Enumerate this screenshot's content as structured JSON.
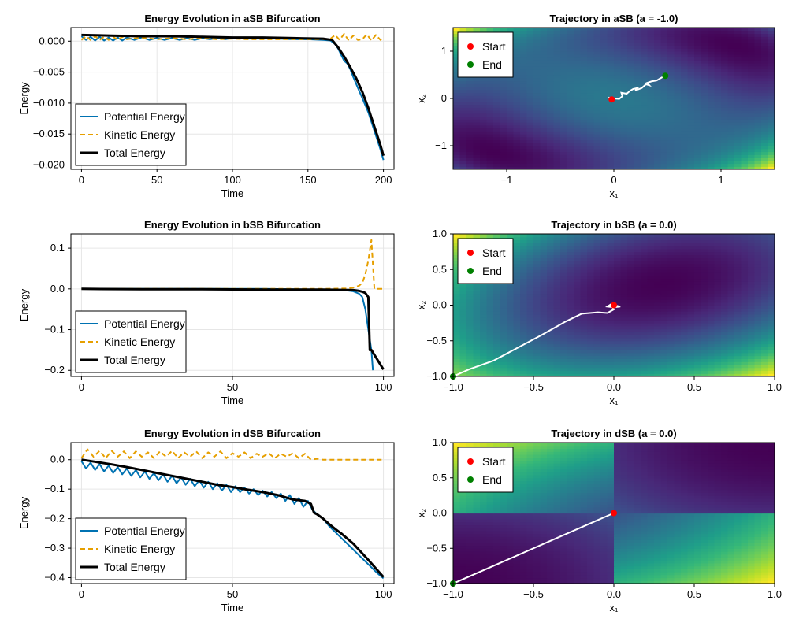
{
  "colors": {
    "potential": "#0072b2",
    "kinetic": "#e69f00",
    "total": "#000000",
    "trajectory": "#ffffff",
    "start": "#ff0000",
    "end": "#008000",
    "colormap": "viridis"
  },
  "chart_data": [
    {
      "type": "line",
      "title": "Energy Evolution in aSB Bifurcation",
      "xlabel": "Time",
      "ylabel": "Energy",
      "xlim": [
        -7,
        207
      ],
      "ylim": [
        -0.0207,
        0.0022
      ],
      "xticks": [
        0,
        50,
        100,
        150,
        200
      ],
      "xtick_labels": [
        "0",
        "50",
        "100",
        "150",
        "200"
      ],
      "yticks": [
        0.0,
        -0.005,
        -0.01,
        -0.015,
        -0.02
      ],
      "ytick_labels": [
        "0.000",
        "−0.005",
        "−0.010",
        "−0.015",
        "−0.020"
      ],
      "grid": true,
      "legend_position": "bottom-left",
      "series": [
        {
          "name": "Potential Energy",
          "style": "solid",
          "x": [
            0,
            3,
            6,
            9,
            12,
            15,
            18,
            21,
            24,
            27,
            30,
            35,
            40,
            45,
            50,
            55,
            60,
            65,
            70,
            75,
            80,
            85,
            90,
            95,
            100,
            110,
            120,
            130,
            140,
            150,
            160,
            165,
            168,
            170,
            172,
            174,
            176,
            178,
            180,
            183,
            186,
            190,
            194,
            198,
            200
          ],
          "y": [
            0.0008,
            0.0002,
            0.0007,
            0.0001,
            0.0007,
            0.0001,
            0.0006,
            0.0001,
            0.0006,
            0.0001,
            0.0006,
            0.0002,
            0.0006,
            0.0002,
            0.0005,
            0.0002,
            0.0005,
            0.0002,
            0.0005,
            0.0002,
            0.0005,
            0.0003,
            0.0005,
            0.0003,
            0.0005,
            0.0004,
            0.0004,
            0.0004,
            0.0003,
            0.0003,
            0.0002,
            0.0001,
            -0.0005,
            -0.0012,
            -0.0022,
            -0.0032,
            -0.0036,
            -0.0045,
            -0.0058,
            -0.0075,
            -0.0092,
            -0.0115,
            -0.0145,
            -0.0175,
            -0.0192
          ]
        },
        {
          "name": "Kinetic Energy",
          "style": "dashed",
          "x": [
            0,
            3,
            6,
            9,
            12,
            15,
            18,
            21,
            24,
            27,
            30,
            40,
            50,
            60,
            70,
            80,
            90,
            100,
            110,
            120,
            130,
            140,
            150,
            160,
            165,
            168,
            171,
            174,
            177,
            180,
            183,
            186,
            189,
            192,
            195,
            198,
            200
          ],
          "y": [
            0.0002,
            0.0008,
            0.0002,
            0.0008,
            0.0002,
            0.0007,
            0.0002,
            0.0007,
            0.0002,
            0.0007,
            0.0003,
            0.0006,
            0.0003,
            0.0005,
            0.0003,
            0.0005,
            0.0003,
            0.0004,
            0.0003,
            0.0003,
            0.0003,
            0.0003,
            0.0003,
            0.0003,
            0.0004,
            0.001,
            0.0002,
            0.0012,
            0.0001,
            0.0009,
            0.0002,
            0.0003,
            0.0011,
            0.0001,
            0.001,
            0.0002,
            0.0006
          ]
        },
        {
          "name": "Total Energy",
          "style": "solid-thick",
          "x": [
            0,
            20,
            40,
            60,
            80,
            100,
            120,
            140,
            160,
            166,
            170,
            174,
            178,
            182,
            186,
            190,
            194,
            198,
            200
          ],
          "y": [
            0.001,
            0.0009,
            0.0008,
            0.0008,
            0.0007,
            0.0006,
            0.0006,
            0.0005,
            0.0004,
            0.0002,
            -0.001,
            -0.0025,
            -0.0042,
            -0.006,
            -0.0082,
            -0.0108,
            -0.0138,
            -0.0168,
            -0.0185
          ]
        }
      ]
    },
    {
      "type": "heatmap",
      "title": "Trajectory in aSB (a = -1.0)",
      "xlabel": "x₁",
      "ylabel": "x₂",
      "xlim": [
        -1.5,
        1.5
      ],
      "ylim": [
        -1.5,
        1.5
      ],
      "xticks": [
        -1,
        0,
        1
      ],
      "xtick_labels": [
        "−1",
        "0",
        "1"
      ],
      "yticks": [
        -1,
        0,
        1
      ],
      "ytick_labels": [
        "−1",
        "0",
        "1"
      ],
      "field": "aSB",
      "legend_position": "top-left",
      "legend": [
        "Start",
        "End"
      ],
      "trajectory": {
        "x": [
          -0.02,
          -0.05,
          0.0,
          0.05,
          0.08,
          0.07,
          0.12,
          0.15,
          0.18,
          0.22,
          0.2,
          0.26,
          0.3,
          0.33,
          0.31,
          0.35,
          0.4,
          0.43,
          0.46,
          0.48
        ],
        "y": [
          -0.02,
          0.02,
          0.0,
          -0.01,
          0.05,
          0.12,
          0.1,
          0.16,
          0.2,
          0.22,
          0.17,
          0.22,
          0.3,
          0.28,
          0.33,
          0.36,
          0.38,
          0.42,
          0.46,
          0.48
        ]
      },
      "start": [
        -0.02,
        -0.02
      ],
      "end": [
        0.48,
        0.48
      ]
    },
    {
      "type": "line",
      "title": "Energy Evolution in bSB Bifurcation",
      "xlabel": "Time",
      "ylabel": "Energy",
      "xlim": [
        -3.5,
        103.5
      ],
      "ylim": [
        -0.215,
        0.135
      ],
      "xticks": [
        0,
        50,
        100
      ],
      "xtick_labels": [
        "0",
        "50",
        "100"
      ],
      "yticks": [
        0.1,
        0.0,
        -0.1,
        -0.2
      ],
      "ytick_labels": [
        "0.1",
        "0.0",
        "−0.1",
        "−0.2"
      ],
      "grid": true,
      "legend_position": "bottom-left",
      "series": [
        {
          "name": "Potential Energy",
          "style": "solid",
          "x": [
            0,
            20,
            40,
            60,
            80,
            88,
            90,
            92,
            93,
            94,
            95,
            96,
            96.5
          ],
          "y": [
            0.0,
            0.0,
            0.0,
            0.0,
            -0.002,
            -0.004,
            -0.006,
            -0.012,
            -0.02,
            -0.05,
            -0.1,
            -0.15,
            -0.2
          ]
        },
        {
          "name": "Kinetic Energy",
          "style": "dashed",
          "x": [
            0,
            20,
            40,
            60,
            80,
            88,
            90,
            92,
            93,
            94,
            95,
            96,
            97,
            100
          ],
          "y": [
            0.0,
            0.0,
            0.0,
            0.0,
            0.0,
            0.001,
            0.003,
            0.008,
            0.015,
            0.035,
            0.07,
            0.12,
            0.0,
            0.0
          ]
        },
        {
          "name": "Total Energy",
          "style": "solid-thick",
          "x": [
            0,
            20,
            40,
            60,
            80,
            90,
            92,
            93,
            94,
            95,
            95.5,
            96,
            100
          ],
          "y": [
            0.0,
            -0.001,
            -0.001,
            -0.002,
            -0.002,
            -0.003,
            -0.005,
            -0.007,
            -0.01,
            -0.02,
            -0.15,
            -0.15,
            -0.198
          ]
        }
      ]
    },
    {
      "type": "heatmap",
      "title": "Trajectory in bSB (a = 0.0)",
      "xlabel": "x₁",
      "ylabel": "x₂",
      "xlim": [
        -1.0,
        1.0
      ],
      "ylim": [
        -1.0,
        1.0
      ],
      "xticks": [
        -1.0,
        -0.5,
        0.0,
        0.5,
        1.0
      ],
      "xtick_labels": [
        "−1.0",
        "−0.5",
        "0.0",
        "0.5",
        "1.0"
      ],
      "yticks": [
        -1.0,
        -0.5,
        0.0,
        0.5,
        1.0
      ],
      "ytick_labels": [
        "−1.0",
        "−0.5",
        "0.0",
        "0.5",
        "1.0"
      ],
      "field": "bSB",
      "legend_position": "top-left",
      "legend": [
        "Start",
        "End"
      ],
      "trajectory": {
        "x": [
          0.0,
          0.04,
          0.0,
          -0.04,
          -0.02,
          0.0,
          -0.04,
          -0.1,
          -0.2,
          -0.3,
          -0.45,
          -0.6,
          -0.75,
          -0.9,
          -0.97,
          -1.0
        ],
        "y": [
          0.0,
          -0.02,
          -0.03,
          -0.02,
          0.01,
          -0.06,
          -0.11,
          -0.1,
          -0.12,
          -0.23,
          -0.42,
          -0.6,
          -0.78,
          -0.9,
          -0.97,
          -1.0
        ]
      },
      "start": [
        0.0,
        0.0
      ],
      "end": [
        -1.0,
        -1.0
      ]
    },
    {
      "type": "line",
      "title": "Energy Evolution in dSB Bifurcation",
      "xlabel": "Time",
      "ylabel": "Energy",
      "xlim": [
        -3.5,
        103.5
      ],
      "ylim": [
        -0.42,
        0.058
      ],
      "xticks": [
        0,
        50,
        100
      ],
      "xtick_labels": [
        "0",
        "50",
        "100"
      ],
      "yticks": [
        0.0,
        -0.1,
        -0.2,
        -0.3,
        -0.4
      ],
      "ytick_labels": [
        "0.0",
        "−0.1",
        "−0.2",
        "−0.3",
        "−0.4"
      ],
      "grid": true,
      "legend_position": "bottom-left",
      "series": [
        {
          "name": "Potential Energy",
          "style": "solid",
          "x": [
            0,
            1.5,
            3,
            4.5,
            6,
            7.5,
            9,
            10.5,
            12,
            13.5,
            15,
            16.5,
            18,
            19.5,
            21,
            22.5,
            24,
            25.5,
            27,
            28.5,
            30,
            31.5,
            33,
            34.5,
            36,
            37.5,
            39,
            40.5,
            42,
            43.5,
            45,
            46.5,
            48,
            49.5,
            51,
            52.5,
            54,
            55.5,
            57,
            58.5,
            60,
            61.5,
            63,
            64.5,
            66,
            67.5,
            69,
            70.5,
            72,
            73.5,
            75,
            76.5,
            78,
            80,
            82,
            84,
            86,
            88,
            90,
            92,
            94,
            96,
            98,
            100
          ],
          "y": [
            -0.005,
            -0.03,
            -0.01,
            -0.035,
            -0.015,
            -0.04,
            -0.02,
            -0.045,
            -0.025,
            -0.05,
            -0.03,
            -0.055,
            -0.035,
            -0.06,
            -0.04,
            -0.065,
            -0.045,
            -0.07,
            -0.05,
            -0.075,
            -0.055,
            -0.08,
            -0.06,
            -0.085,
            -0.065,
            -0.09,
            -0.07,
            -0.095,
            -0.075,
            -0.1,
            -0.08,
            -0.105,
            -0.085,
            -0.11,
            -0.09,
            -0.11,
            -0.095,
            -0.115,
            -0.1,
            -0.12,
            -0.105,
            -0.125,
            -0.11,
            -0.13,
            -0.115,
            -0.14,
            -0.12,
            -0.15,
            -0.13,
            -0.16,
            -0.14,
            -0.17,
            -0.185,
            -0.2,
            -0.225,
            -0.245,
            -0.265,
            -0.285,
            -0.305,
            -0.325,
            -0.345,
            -0.365,
            -0.385,
            -0.402
          ]
        },
        {
          "name": "Kinetic Energy",
          "style": "dashed",
          "x": [
            0,
            2,
            4,
            6,
            8,
            10,
            12,
            14,
            16,
            18,
            20,
            22,
            24,
            26,
            28,
            30,
            32,
            34,
            36,
            38,
            40,
            42,
            44,
            46,
            48,
            50,
            52,
            54,
            56,
            58,
            60,
            62,
            64,
            66,
            68,
            70,
            72,
            74,
            76,
            78,
            80,
            85,
            90,
            95,
            100
          ],
          "y": [
            0.005,
            0.035,
            0.01,
            0.03,
            0.005,
            0.03,
            0.01,
            0.028,
            0.005,
            0.028,
            0.01,
            0.025,
            0.005,
            0.028,
            0.01,
            0.03,
            0.005,
            0.025,
            0.01,
            0.028,
            0.005,
            0.025,
            0.01,
            0.028,
            0.005,
            0.022,
            0.01,
            0.025,
            0.005,
            0.02,
            0.01,
            0.022,
            0.005,
            0.02,
            0.01,
            0.022,
            0.005,
            0.02,
            0.0,
            0.003,
            0.0,
            0.0,
            0.0,
            0.0,
            0.0
          ]
        },
        {
          "name": "Total Energy",
          "style": "solid-thick",
          "x": [
            0,
            5,
            10,
            15,
            20,
            25,
            30,
            35,
            40,
            45,
            50,
            55,
            60,
            65,
            70,
            74,
            76,
            77,
            78,
            80,
            82,
            84,
            86,
            90,
            95,
            100
          ],
          "y": [
            0.0,
            -0.008,
            -0.016,
            -0.025,
            -0.035,
            -0.045,
            -0.055,
            -0.065,
            -0.075,
            -0.085,
            -0.093,
            -0.102,
            -0.11,
            -0.12,
            -0.135,
            -0.14,
            -0.15,
            -0.18,
            -0.185,
            -0.2,
            -0.218,
            -0.235,
            -0.25,
            -0.285,
            -0.34,
            -0.398
          ]
        }
      ]
    },
    {
      "type": "heatmap",
      "title": "Trajectory in dSB (a = 0.0)",
      "xlabel": "x₁",
      "ylabel": "x₂",
      "xlim": [
        -1.0,
        1.0
      ],
      "ylim": [
        -1.0,
        1.0
      ],
      "xticks": [
        -1.0,
        -0.5,
        0.0,
        0.5,
        1.0
      ],
      "xtick_labels": [
        "−1.0",
        "−0.5",
        "0.0",
        "0.5",
        "1.0"
      ],
      "yticks": [
        -1.0,
        -0.5,
        0.0,
        0.5,
        1.0
      ],
      "ytick_labels": [
        "−1.0",
        "−0.5",
        "0.0",
        "0.5",
        "1.0"
      ],
      "field": "dSB",
      "legend_position": "top-left",
      "legend": [
        "Start",
        "End"
      ],
      "trajectory": {
        "x": [
          0.0,
          -1.0
        ],
        "y": [
          0.0,
          -1.0
        ]
      },
      "start": [
        0.0,
        0.0
      ],
      "end": [
        -1.0,
        -1.0
      ]
    }
  ]
}
